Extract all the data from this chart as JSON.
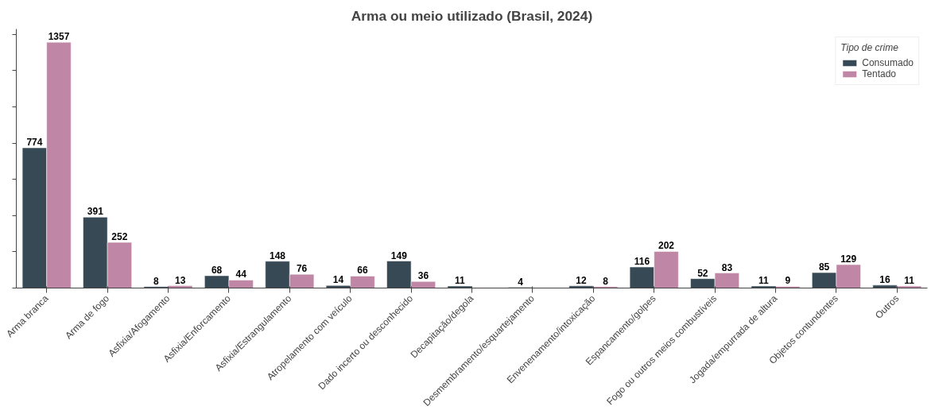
{
  "chart_data": {
    "type": "bar",
    "title": "Arma ou meio utilizado (Brasil, 2024)",
    "categories": [
      "Arma branca",
      "Arma de fogo",
      "Asfixia/Afogamento",
      "Asfixia/Enforcamento",
      "Asfixia/Estrangulamento",
      "Atropelamento com veículo",
      "Dado incerto ou desconhecido",
      "Decapitação/degola",
      "Desmembramento/esquartejamento",
      "Envenenamento/intoxicação",
      "Espancamento/golpes",
      "Fogo ou outros meios combustíveis",
      "Jogada/empurrada de altura",
      "Objetos contundentes",
      "Outros"
    ],
    "series": [
      {
        "name": "Consumado",
        "color": "#374954",
        "values": [
          774,
          391,
          8,
          68,
          148,
          14,
          149,
          11,
          4,
          12,
          116,
          52,
          11,
          85,
          16
        ]
      },
      {
        "name": "Tentado",
        "color": "#bf86a5",
        "values": [
          1357,
          252,
          13,
          44,
          76,
          66,
          36,
          null,
          null,
          8,
          202,
          83,
          9,
          129,
          11
        ]
      }
    ],
    "legend_title": "Tipo de crime",
    "legend": "top right",
    "ylim": [
      0,
      1430
    ],
    "yticks": [
      0,
      200,
      400,
      600,
      800,
      1000,
      1200,
      1400
    ],
    "tick_labels": "x",
    "grid": false,
    "data_labels": true
  }
}
